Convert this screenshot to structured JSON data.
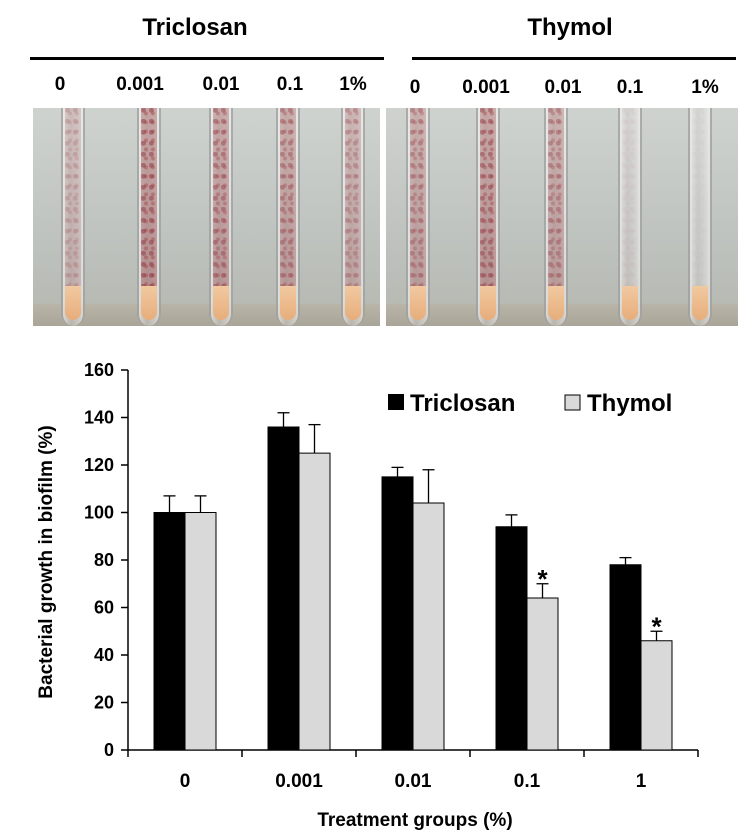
{
  "photo_panel": {
    "groups": [
      {
        "name": "Triclosan",
        "concentrations": [
          "0",
          "0.001",
          "0.01",
          "0.1",
          "1%"
        ]
      },
      {
        "name": "Thymol",
        "concentrations": [
          "0",
          "0.001",
          "0.01",
          "0.1",
          "1%"
        ]
      }
    ]
  },
  "chart_data": {
    "type": "bar",
    "categories": [
      "0",
      "0.001",
      "0.01",
      "0.1",
      "1"
    ],
    "series": [
      {
        "name": "Triclosan",
        "values": [
          100,
          136,
          115,
          94,
          78
        ],
        "errors": [
          7,
          6,
          4,
          5,
          3
        ],
        "color": "#000000"
      },
      {
        "name": "Thymol",
        "values": [
          100,
          125,
          104,
          64,
          46
        ],
        "errors": [
          7,
          12,
          14,
          6,
          4
        ],
        "color": "#d9d9d9"
      }
    ],
    "significance": [
      "",
      "",
      "",
      "*",
      "*"
    ],
    "xlabel": "Treatment groups (%)",
    "ylabel": "Bacterial growth in biofilm (%)",
    "ylim": [
      0,
      160
    ],
    "yticks": [
      0,
      20,
      40,
      60,
      80,
      100,
      120,
      140,
      160
    ],
    "grid": false,
    "legend": "top-right"
  }
}
